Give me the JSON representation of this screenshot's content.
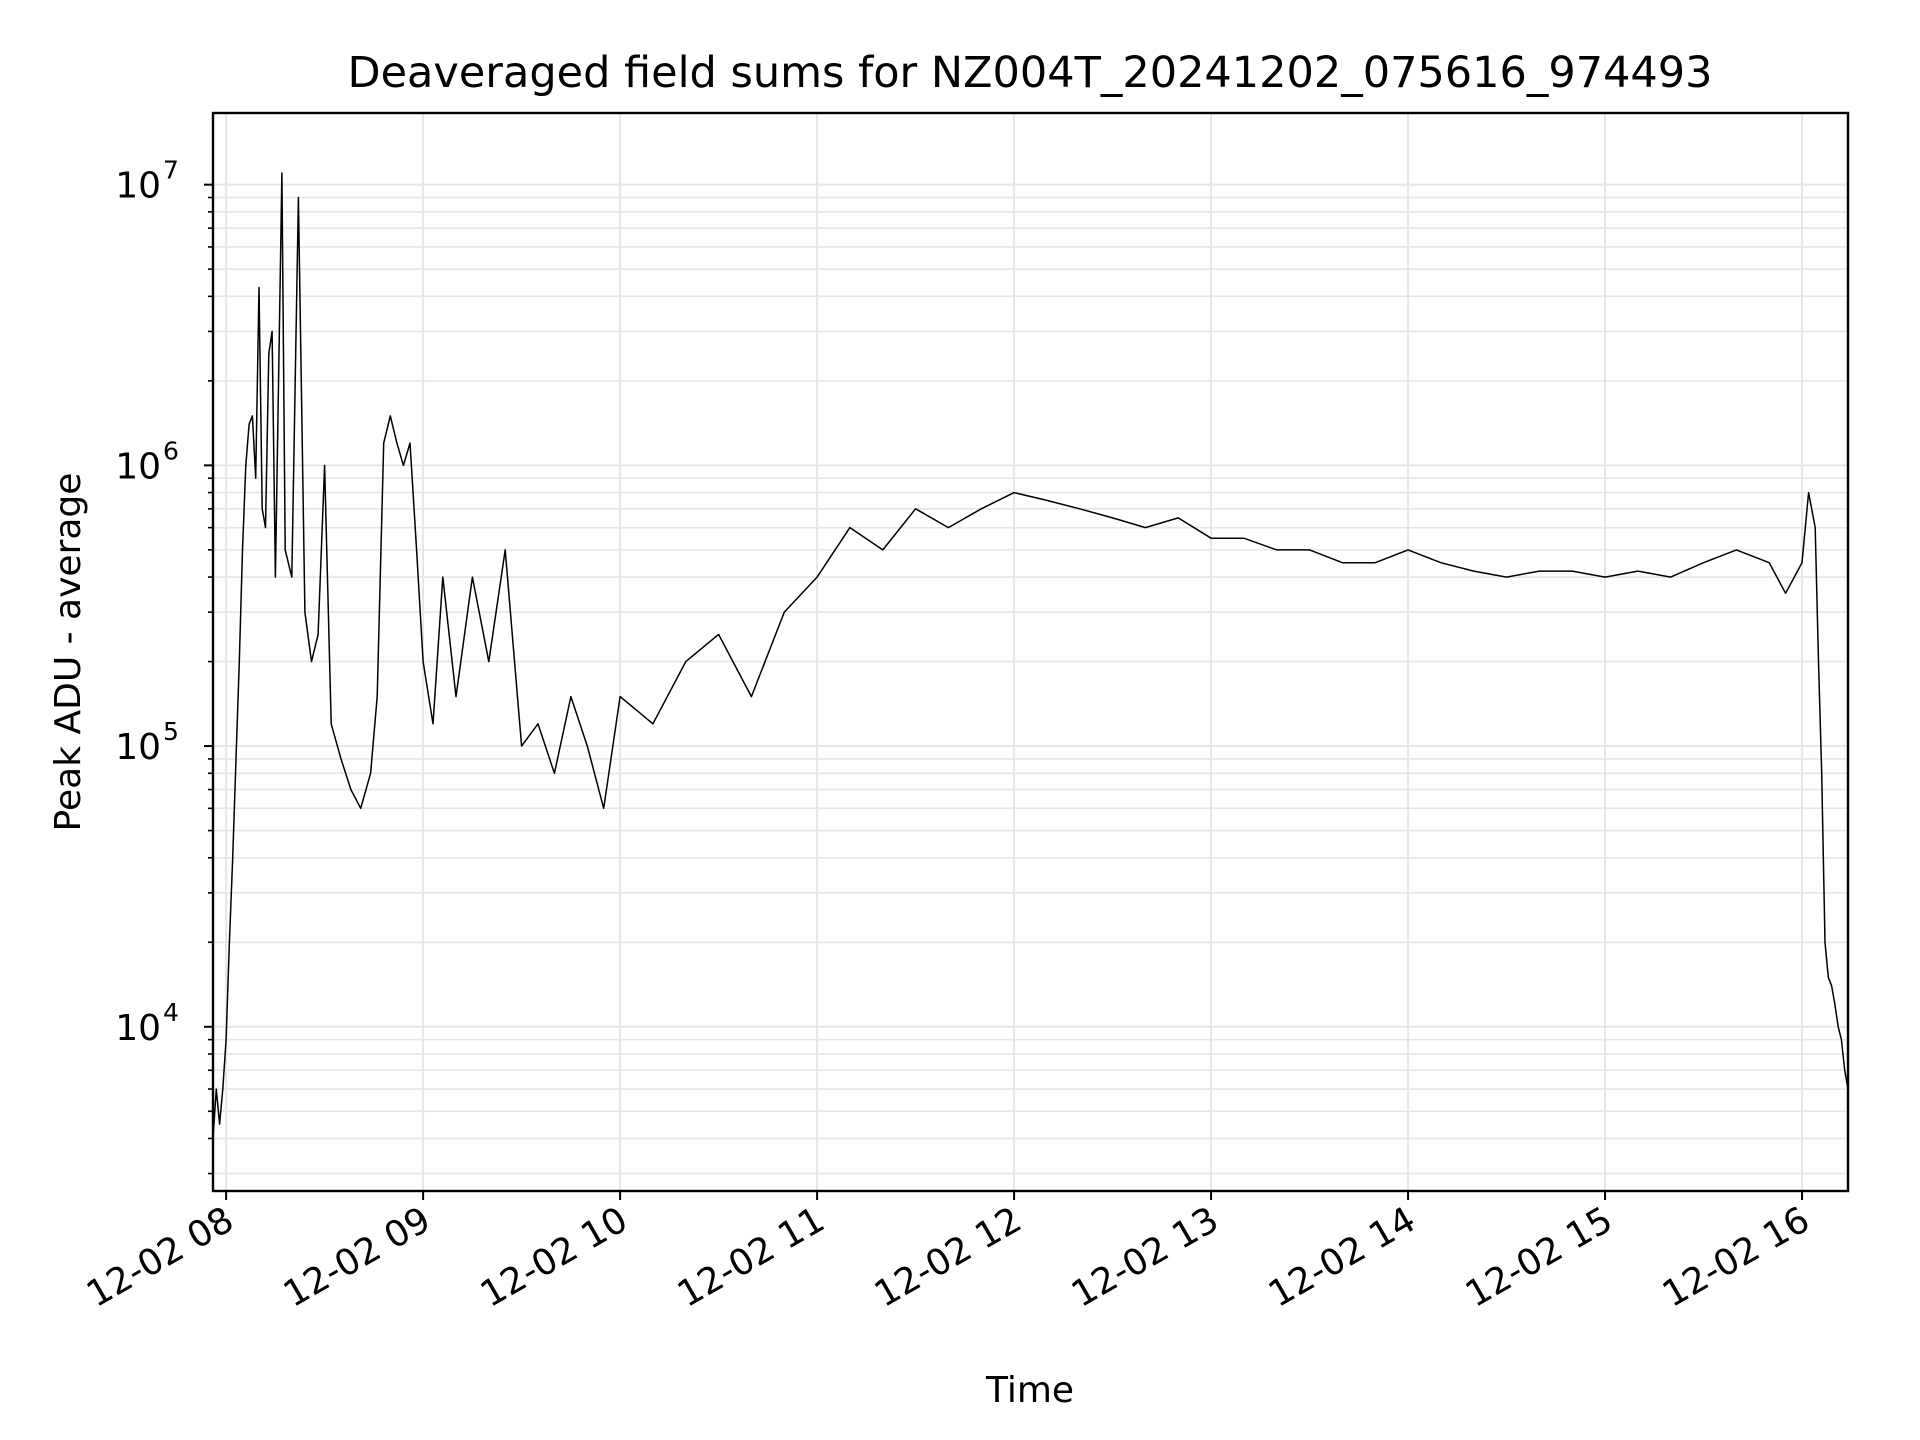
{
  "chart_data": {
    "type": "line",
    "title": "Deaveraged field sums for NZ004T_20241202_075616_974493",
    "xlabel": "Time",
    "ylabel": "Peak ADU - average",
    "yscale": "log",
    "ylim": [
      2600,
      18000000
    ],
    "xlim": [
      "12-02 07:56",
      "12-02 16:14"
    ],
    "grid": true,
    "x_ticks": [
      "12-02 08",
      "12-02 09",
      "12-02 10",
      "12-02 11",
      "12-02 12",
      "12-02 13",
      "12-02 14",
      "12-02 15",
      "12-02 16"
    ],
    "y_ticks": [
      {
        "base": "10",
        "exp": "4",
        "value": 10000
      },
      {
        "base": "10",
        "exp": "5",
        "value": 100000
      },
      {
        "base": "10",
        "exp": "6",
        "value": 1000000
      },
      {
        "base": "10",
        "exp": "7",
        "value": 10000000
      }
    ],
    "series": [
      {
        "color": "#000000",
        "x": [
          "12-02 07:56",
          "12-02 07:57",
          "12-02 07:58",
          "12-02 07:59",
          "12-02 08:00",
          "12-02 08:01",
          "12-02 08:02",
          "12-02 08:03",
          "12-02 08:04",
          "12-02 08:05",
          "12-02 08:06",
          "12-02 08:07",
          "12-02 08:08",
          "12-02 08:09",
          "12-02 08:10",
          "12-02 08:11",
          "12-02 08:12",
          "12-02 08:13",
          "12-02 08:14",
          "12-02 08:15",
          "12-02 08:17",
          "12-02 08:18",
          "12-02 08:20",
          "12-02 08:22",
          "12-02 08:24",
          "12-02 08:26",
          "12-02 08:28",
          "12-02 08:30",
          "12-02 08:32",
          "12-02 08:35",
          "12-02 08:38",
          "12-02 08:41",
          "12-02 08:44",
          "12-02 08:46",
          "12-02 08:48",
          "12-02 08:50",
          "12-02 08:52",
          "12-02 08:54",
          "12-02 08:56",
          "12-02 08:58",
          "12-02 09:00",
          "12-02 09:03",
          "12-02 09:06",
          "12-02 09:10",
          "12-02 09:15",
          "12-02 09:20",
          "12-02 09:25",
          "12-02 09:30",
          "12-02 09:35",
          "12-02 09:40",
          "12-02 09:45",
          "12-02 09:50",
          "12-02 09:55",
          "12-02 10:00",
          "12-02 10:10",
          "12-02 10:20",
          "12-02 10:30",
          "12-02 10:40",
          "12-02 10:50",
          "12-02 11:00",
          "12-02 11:10",
          "12-02 11:20",
          "12-02 11:30",
          "12-02 11:40",
          "12-02 11:50",
          "12-02 12:00",
          "12-02 12:10",
          "12-02 12:20",
          "12-02 12:30",
          "12-02 12:40",
          "12-02 12:50",
          "12-02 13:00",
          "12-02 13:10",
          "12-02 13:20",
          "12-02 13:30",
          "12-02 13:40",
          "12-02 13:50",
          "12-02 14:00",
          "12-02 14:10",
          "12-02 14:20",
          "12-02 14:30",
          "12-02 14:40",
          "12-02 14:50",
          "12-02 15:00",
          "12-02 15:10",
          "12-02 15:20",
          "12-02 15:30",
          "12-02 15:40",
          "12-02 15:50",
          "12-02 15:55",
          "12-02 16:00",
          "12-02 16:02",
          "12-02 16:04",
          "12-02 16:05",
          "12-02 16:06",
          "12-02 16:07",
          "12-02 16:08",
          "12-02 16:09",
          "12-02 16:10",
          "12-02 16:11",
          "12-02 16:12",
          "12-02 16:13",
          "12-02 16:14"
        ],
        "y": [
          4000,
          6000,
          4500,
          6000,
          9000,
          20000,
          40000,
          90000,
          200000,
          500000,
          1000000,
          1400000,
          1500000,
          900000,
          4300000,
          700000,
          600000,
          2500000,
          3000000,
          400000,
          11000000,
          500000,
          400000,
          9000000,
          300000,
          200000,
          250000,
          1000000,
          120000,
          90000,
          70000,
          60000,
          80000,
          150000,
          1200000,
          1500000,
          1200000,
          1000000,
          1200000,
          500000,
          200000,
          120000,
          400000,
          150000,
          400000,
          200000,
          500000,
          100000,
          120000,
          80000,
          150000,
          100000,
          60000,
          150000,
          120000,
          200000,
          250000,
          150000,
          300000,
          400000,
          600000,
          500000,
          700000,
          600000,
          700000,
          800000,
          750000,
          700000,
          650000,
          600000,
          650000,
          550000,
          550000,
          500000,
          500000,
          450000,
          450000,
          500000,
          450000,
          420000,
          400000,
          420000,
          420000,
          400000,
          420000,
          400000,
          450000,
          500000,
          450000,
          350000,
          450000,
          800000,
          600000,
          200000,
          80000,
          20000,
          15000,
          14000,
          12000,
          10000,
          9000,
          7000,
          6000
        ]
      }
    ]
  }
}
